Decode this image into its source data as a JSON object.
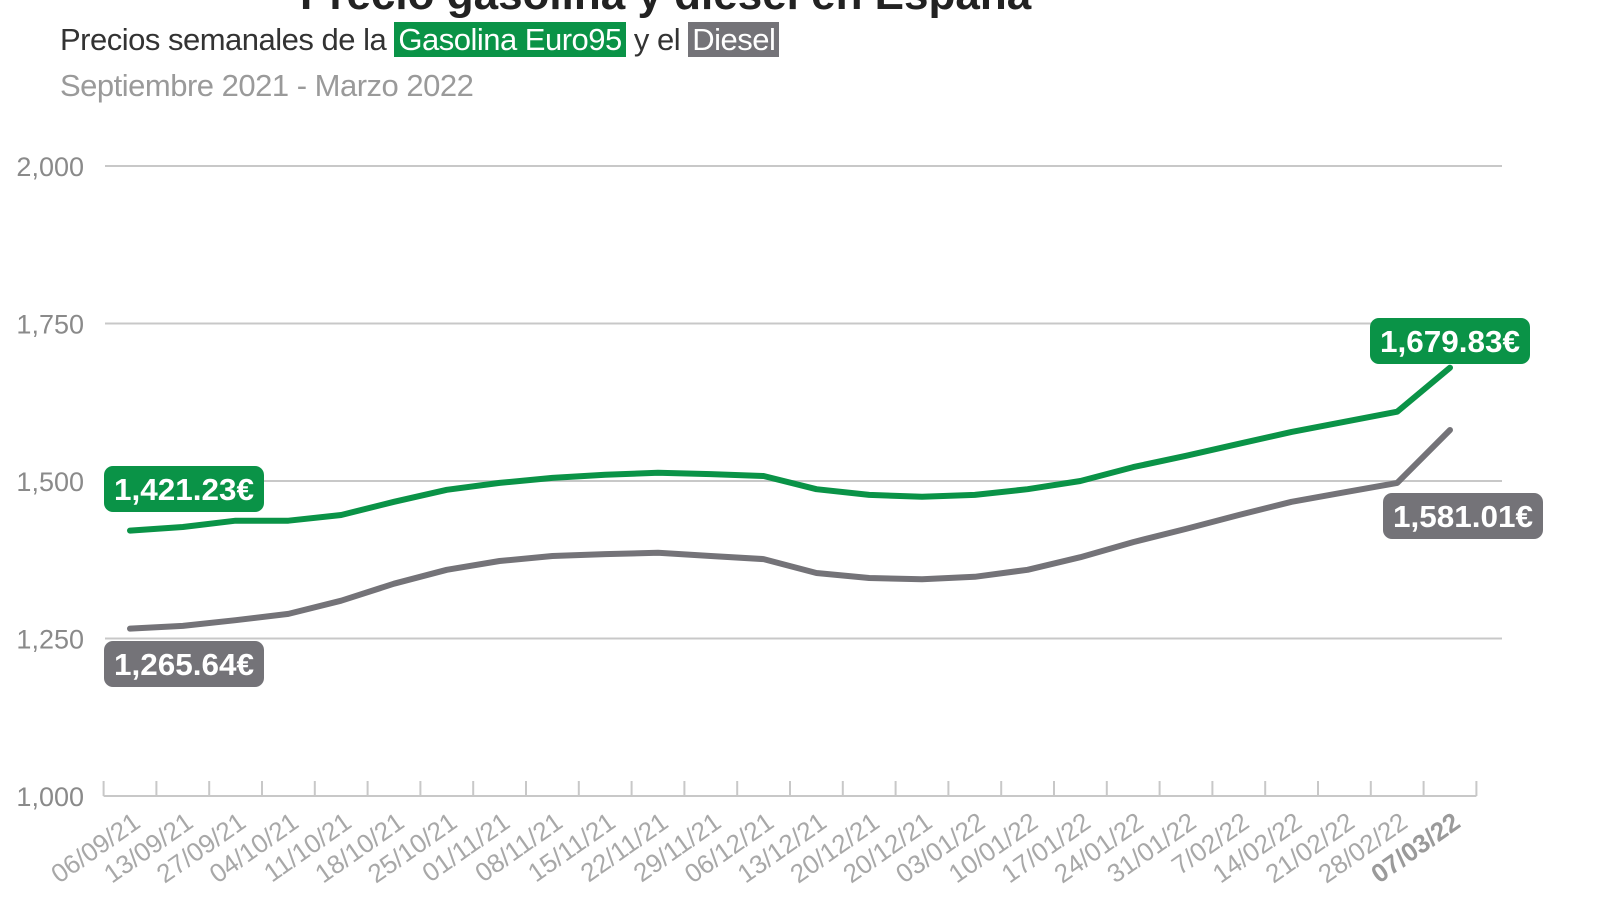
{
  "header": {
    "subtitle_prefix": "Precios semanales de la ",
    "series_a_label": "Gasolina Euro95",
    "subtitle_mid": " y el ",
    "series_b_label": "Diesel",
    "date_range": "Septiembre 2021 - Marzo 2022"
  },
  "colors": {
    "gasolina": "#0a9347",
    "diesel": "#747378",
    "grid": "#c8c8c8",
    "axis_text": "#8a8a8a"
  },
  "annotations": {
    "gasolina_start": "1,421.23€",
    "gasolina_end": "1,679.83€",
    "diesel_start": "1,265.64€",
    "diesel_end": "1,581.01€"
  },
  "chart_data": {
    "type": "line",
    "title": "Precios semanales de la Gasolina Euro95 y el Diesel",
    "subtitle": "Septiembre 2021 - Marzo 2022",
    "xlabel": "",
    "ylabel": "",
    "ylim": [
      1000,
      2000
    ],
    "yticks": [
      "1,000",
      "1,250",
      "1,500",
      "1,750",
      "2,000"
    ],
    "ytick_values": [
      1000,
      1250,
      1500,
      1750,
      2000
    ],
    "grid": true,
    "legend_position": "inline-subtitle",
    "categories": [
      "06/09/21",
      "13/09/21",
      "27/09/21",
      "04/10/21",
      "11/10/21",
      "18/10/21",
      "25/10/21",
      "01/11/21",
      "08/11/21",
      "15/11/21",
      "22/11/21",
      "29/11/21",
      "06/12/21",
      "13/12/21",
      "20/12/21",
      "20/12/21",
      "03/01/22",
      "10/01/22",
      "17/01/22",
      "24/01/22",
      "31/01/22",
      "7/02/22",
      "14/02/22",
      "21/02/22",
      "28/02/22",
      "07/03/22"
    ],
    "series": [
      {
        "name": "Gasolina Euro95",
        "color": "#0a9347",
        "values": [
          1421.23,
          1427,
          1437,
          1437,
          1446,
          1467,
          1486,
          1497,
          1505,
          1510,
          1513,
          1511,
          1508,
          1487,
          1478,
          1475,
          1478,
          1487,
          1500,
          1522,
          1540,
          1559,
          1578,
          1594,
          1610,
          1679.83
        ]
      },
      {
        "name": "Diesel",
        "color": "#747378",
        "values": [
          1265.64,
          1270,
          1279,
          1289,
          1310,
          1337,
          1359,
          1373,
          1381,
          1384,
          1386,
          1381,
          1376,
          1354,
          1346,
          1344,
          1348,
          1359,
          1379,
          1403,
          1424,
          1446,
          1467,
          1482,
          1497,
          1581.01
        ]
      }
    ]
  }
}
